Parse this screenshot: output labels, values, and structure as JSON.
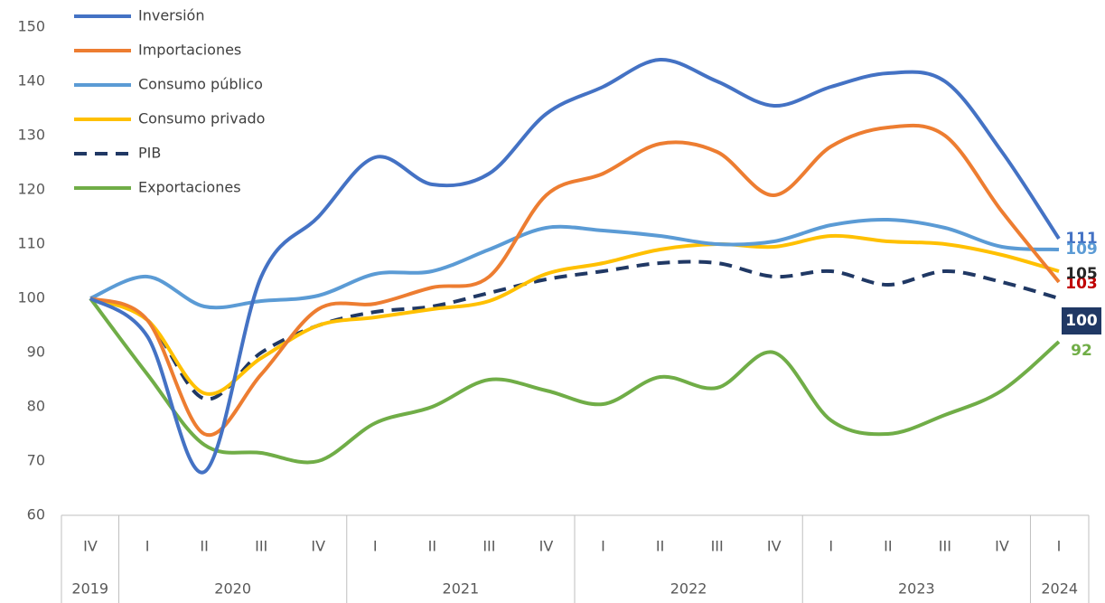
{
  "chart_data": {
    "type": "line",
    "categories": [
      "IV",
      "I",
      "II",
      "III",
      "IV",
      "I",
      "II",
      "III",
      "IV",
      "I",
      "II",
      "III",
      "IV",
      "I",
      "II",
      "III",
      "IV",
      "I"
    ],
    "x_groups": [
      {
        "label": "2019",
        "start": 0,
        "end": 0
      },
      {
        "label": "2020",
        "start": 1,
        "end": 4
      },
      {
        "label": "2021",
        "start": 5,
        "end": 8
      },
      {
        "label": "2022",
        "start": 9,
        "end": 12
      },
      {
        "label": "2023",
        "start": 13,
        "end": 16
      },
      {
        "label": "2024",
        "start": 17,
        "end": 17
      }
    ],
    "ylim": [
      60,
      150
    ],
    "yticks": [
      60,
      70,
      80,
      90,
      100,
      110,
      120,
      130,
      140,
      150
    ],
    "grid": false,
    "legend": "top-left",
    "series": [
      {
        "name": "Inversión",
        "color": "#4472c4",
        "label_color": "#4472c4",
        "values": [
          100,
          93,
          68,
          104,
          115,
          126,
          121,
          123,
          134,
          139,
          144,
          140,
          135.5,
          139,
          141.5,
          140,
          127,
          111
        ]
      },
      {
        "name": "Importaciones",
        "color": "#ed7d31",
        "label_color": "#c00000",
        "values": [
          100,
          96,
          75,
          86,
          98,
          99,
          102,
          104,
          119,
          123,
          128.5,
          127,
          119,
          128,
          131.5,
          130,
          116,
          103
        ]
      },
      {
        "name": "Consumo público",
        "color": "#5b9bd5",
        "label_color": "#5b9bd5",
        "values": [
          100,
          104,
          98.5,
          99.5,
          100.5,
          104.5,
          105,
          109,
          113,
          112.5,
          111.5,
          110,
          110.5,
          113.5,
          114.5,
          113,
          109.5,
          109
        ]
      },
      {
        "name": "Consumo privado",
        "color": "#ffc000",
        "label_color": "#262626",
        "values": [
          100,
          96,
          82.5,
          89,
          95,
          96.5,
          98,
          99.5,
          104.5,
          106.5,
          109,
          110,
          109.5,
          111.5,
          110.5,
          110,
          108,
          105
        ]
      },
      {
        "name": "PIB",
        "color": "#203864",
        "dashed": true,
        "label_color": "#ffffff",
        "label_box": "#203864",
        "values": [
          100,
          96,
          81.5,
          90,
          95,
          97.5,
          98.5,
          101,
          103.5,
          105,
          106.5,
          106.5,
          104,
          105,
          102.5,
          105,
          103,
          100
        ]
      },
      {
        "name": "Exportaciones",
        "color": "#70ad47",
        "label_color": "#70ad47",
        "values": [
          100,
          86,
          73,
          71.5,
          70,
          77,
          80,
          85,
          83,
          80.5,
          85.5,
          83.5,
          90,
          77.5,
          75,
          78.5,
          83,
          92
        ]
      }
    ]
  }
}
